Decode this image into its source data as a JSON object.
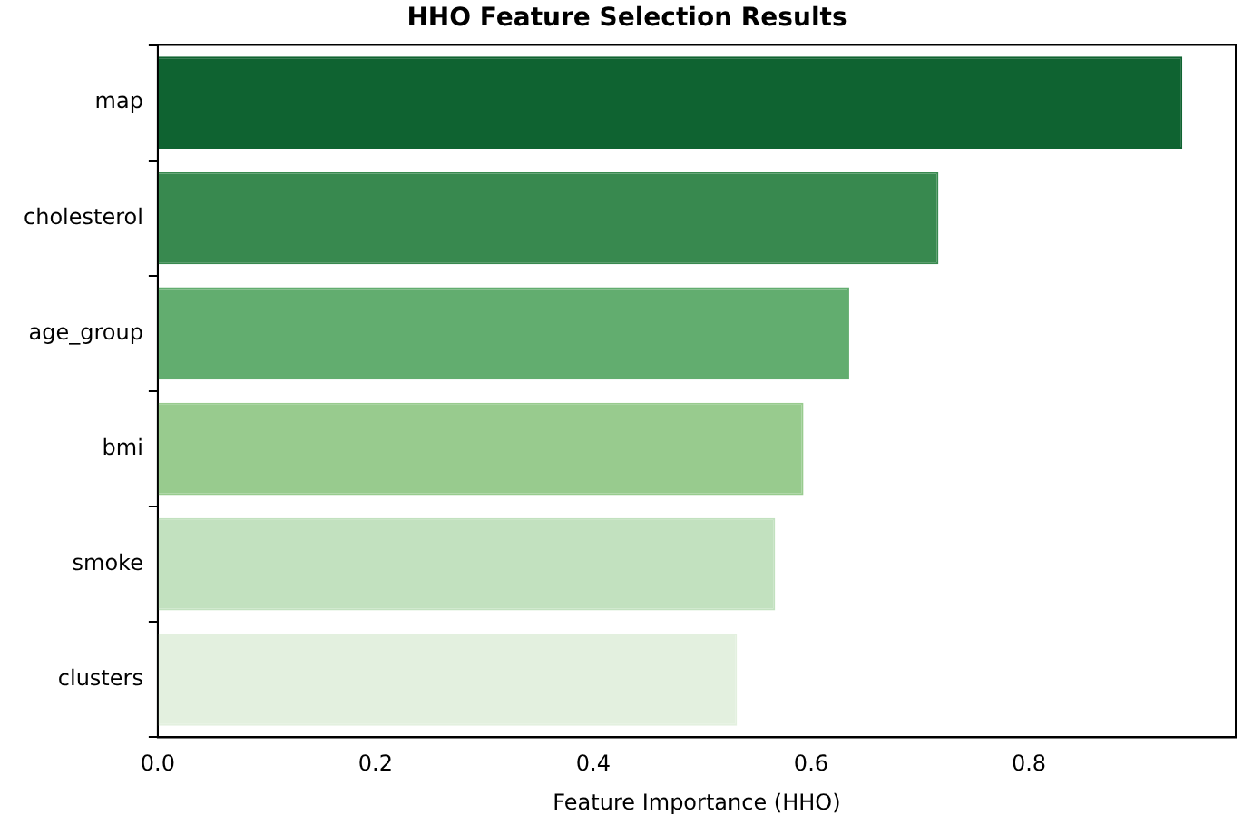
{
  "chart_data": {
    "type": "bar",
    "orientation": "horizontal",
    "title": "HHO Feature Selection Results",
    "xlabel": "Feature Importance (HHO)",
    "categories": [
      "map",
      "cholesterol",
      "age_group",
      "bmi",
      "smoke",
      "clusters"
    ],
    "values": [
      0.941,
      0.717,
      0.635,
      0.593,
      0.567,
      0.532
    ],
    "colors": [
      "#0f6331",
      "#38894f",
      "#62ad6f",
      "#98cb8e",
      "#c2e1bf",
      "#e3f0df"
    ],
    "xlim": [
      0,
      0.99
    ],
    "xticks": [
      {
        "value": 0,
        "label": "0.0"
      },
      {
        "value": 0.2,
        "label": "0.2"
      },
      {
        "value": 0.4,
        "label": "0.4"
      },
      {
        "value": 0.6,
        "label": "0.6"
      },
      {
        "value": 0.8,
        "label": "0.8"
      }
    ],
    "grid": false,
    "legend": false
  }
}
